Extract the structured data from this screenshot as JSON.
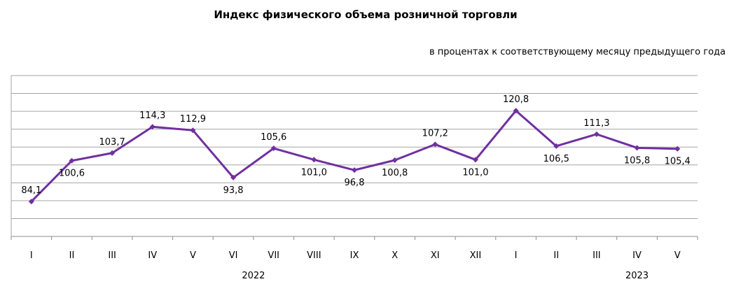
{
  "chart_data": {
    "type": "line",
    "title": "Индекс физического объема розничной торговли",
    "subtitle": "в процентах к соответствующему месяцу предыдущего года",
    "categories": [
      "I",
      "II",
      "III",
      "IV",
      "V",
      "VI",
      "VII",
      "VIII",
      "IX",
      "X",
      "XI",
      "XII",
      "I",
      "II",
      "III",
      "IV",
      "V"
    ],
    "year_labels": [
      {
        "text": "2022",
        "category_index": 5.5
      },
      {
        "text": "2023",
        "category_index": 15
      }
    ],
    "series": [
      {
        "color": "#7030a0",
        "values": [
          84.1,
          100.6,
          103.7,
          114.3,
          112.9,
          93.8,
          105.6,
          101.0,
          96.8,
          100.8,
          107.2,
          101.0,
          120.8,
          106.5,
          111.3,
          105.8,
          105.4
        ],
        "labels": [
          "84,1",
          "100,6",
          "103,7",
          "114,3",
          "112,9",
          "93,8",
          "105,6",
          "101,0",
          "96,8",
          "100,8",
          "107,2",
          "101,0",
          "120,8",
          "106,5",
          "111,3",
          "105,8",
          "105,4"
        ]
      }
    ],
    "ylim": [
      70,
      135
    ],
    "grid": true,
    "legend": "none"
  }
}
